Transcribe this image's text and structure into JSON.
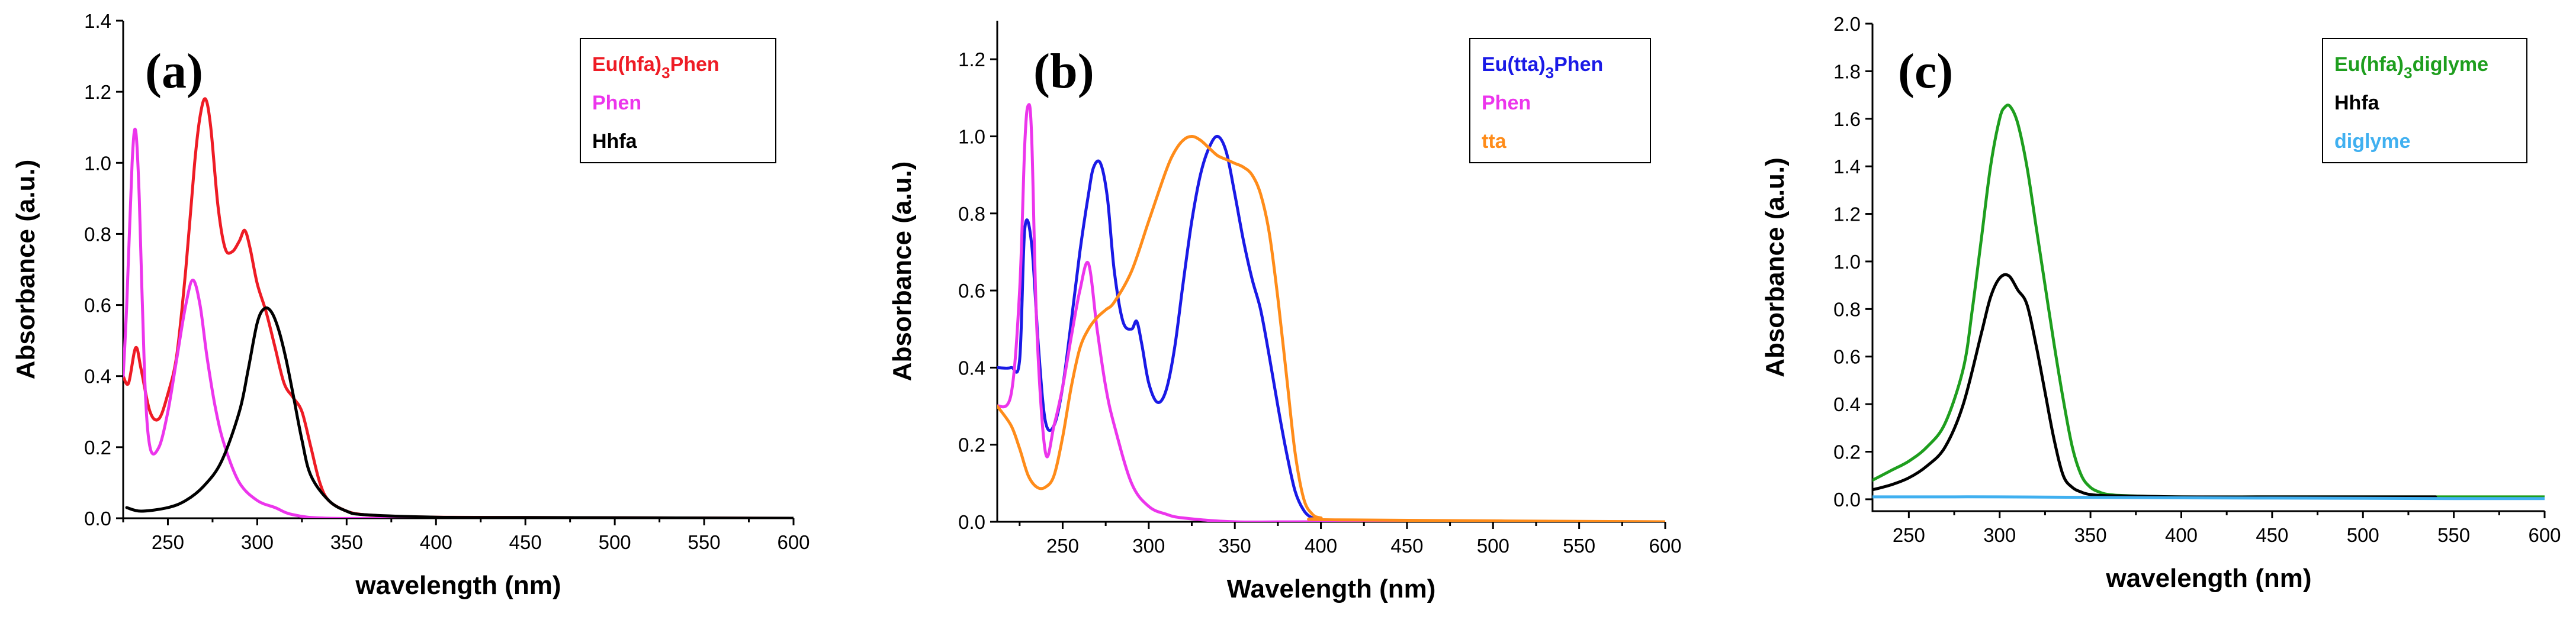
{
  "chart_data": [
    {
      "type": "line",
      "panel_label": "(a)",
      "xlabel": "wavelength (nm)",
      "ylabel": "Absorbance (a.u.)",
      "xlim": [
        225,
        600
      ],
      "ylim": [
        0,
        1.4
      ],
      "xticks": [
        250,
        300,
        350,
        400,
        450,
        500,
        550,
        600
      ],
      "yticks": [
        0.0,
        0.2,
        0.4,
        0.6,
        0.8,
        1.0,
        1.2,
        1.4
      ],
      "ytick_labels": [
        "0.0",
        "0.2",
        "0.4",
        "0.6",
        "0.8",
        "1.0",
        "1.2",
        "1.4"
      ],
      "legend_position": "top-right",
      "series": [
        {
          "name": "Eu(hfa)",
          "subscript": "3",
          "suffix": "Phen",
          "color": "#ee1c25",
          "x": [
            225,
            228,
            232,
            235,
            240,
            245,
            250,
            255,
            260,
            265,
            268,
            271,
            274,
            278,
            282,
            286,
            290,
            293,
            296,
            300,
            305,
            310,
            315,
            320,
            325,
            330,
            335,
            340,
            350,
            360,
            380,
            400,
            450,
            600
          ],
          "y": [
            0.4,
            0.38,
            0.48,
            0.42,
            0.3,
            0.28,
            0.35,
            0.46,
            0.7,
            1.0,
            1.13,
            1.18,
            1.1,
            0.88,
            0.76,
            0.75,
            0.78,
            0.81,
            0.76,
            0.66,
            0.58,
            0.48,
            0.38,
            0.34,
            0.3,
            0.2,
            0.1,
            0.05,
            0.02,
            0.01,
            0.005,
            0.003,
            0.002,
            0.0
          ]
        },
        {
          "name": "Phen",
          "subscript": "",
          "suffix": "",
          "color": "#ec35ec",
          "x": [
            225,
            227,
            230,
            232,
            234,
            237,
            240,
            245,
            250,
            255,
            260,
            264,
            268,
            272,
            277,
            282,
            290,
            300,
            310,
            320,
            340,
            400,
            600
          ],
          "y": [
            0.4,
            0.6,
            1.0,
            1.09,
            0.9,
            0.4,
            0.2,
            0.2,
            0.3,
            0.45,
            0.6,
            0.67,
            0.6,
            0.45,
            0.3,
            0.2,
            0.1,
            0.05,
            0.03,
            0.01,
            0.0,
            0.0,
            0.0
          ]
        },
        {
          "name": "Hhfa",
          "subscript": "",
          "suffix": "",
          "color": "#000000",
          "x": [
            227,
            235,
            250,
            260,
            270,
            280,
            290,
            295,
            300,
            304,
            308,
            312,
            316,
            320,
            325,
            330,
            340,
            350,
            360,
            400,
            450,
            600
          ],
          "y": [
            0.03,
            0.02,
            0.03,
            0.05,
            0.09,
            0.16,
            0.3,
            0.42,
            0.55,
            0.59,
            0.58,
            0.53,
            0.45,
            0.35,
            0.22,
            0.12,
            0.05,
            0.02,
            0.01,
            0.003,
            0.002,
            0.0
          ]
        }
      ]
    },
    {
      "type": "line",
      "panel_label": "(b)",
      "xlabel": "Wavelength (nm)",
      "ylabel": "Absorbance (a.u.)",
      "xlim": [
        212,
        600
      ],
      "ylim": [
        0,
        1.3
      ],
      "xticks": [
        250,
        300,
        350,
        400,
        450,
        500,
        550,
        600
      ],
      "yticks": [
        0.0,
        0.2,
        0.4,
        0.6,
        0.8,
        1.0,
        1.2
      ],
      "ytick_labels": [
        "0.0",
        "0.2",
        "0.4",
        "0.6",
        "0.8",
        "1.0",
        "1.2"
      ],
      "legend_position": "top-right",
      "series": [
        {
          "name": "Eu(tta)",
          "subscript": "3",
          "suffix": "Phen",
          "color": "#1a1ae6",
          "x": [
            212,
            220,
            225,
            228,
            232,
            236,
            240,
            245,
            250,
            255,
            260,
            265,
            268,
            272,
            276,
            280,
            285,
            290,
            293,
            296,
            300,
            305,
            310,
            315,
            320,
            325,
            330,
            335,
            340,
            345,
            350,
            355,
            360,
            365,
            370,
            375,
            380,
            385,
            390,
            395,
            400,
            420,
            600
          ],
          "y": [
            0.4,
            0.4,
            0.42,
            0.76,
            0.72,
            0.45,
            0.26,
            0.25,
            0.35,
            0.52,
            0.7,
            0.85,
            0.92,
            0.93,
            0.84,
            0.65,
            0.52,
            0.5,
            0.52,
            0.46,
            0.36,
            0.31,
            0.34,
            0.45,
            0.62,
            0.78,
            0.9,
            0.97,
            1.0,
            0.96,
            0.85,
            0.73,
            0.63,
            0.55,
            0.43,
            0.3,
            0.18,
            0.08,
            0.03,
            0.01,
            0.005,
            0.002,
            0.0
          ]
        },
        {
          "name": "Phen",
          "subscript": "",
          "suffix": "",
          "color": "#ec35ec",
          "x": [
            212,
            220,
            225,
            228,
            230,
            232,
            235,
            240,
            245,
            250,
            255,
            260,
            265,
            270,
            275,
            280,
            290,
            300,
            310,
            320,
            350,
            400,
            600
          ],
          "y": [
            0.3,
            0.33,
            0.6,
            0.98,
            1.08,
            1.0,
            0.5,
            0.18,
            0.25,
            0.35,
            0.48,
            0.6,
            0.67,
            0.5,
            0.35,
            0.25,
            0.1,
            0.04,
            0.02,
            0.01,
            0.0,
            0.0,
            0.0
          ]
        },
        {
          "name": "tta",
          "subscript": "",
          "suffix": "",
          "color": "#ff8c1a",
          "x": [
            212,
            220,
            225,
            230,
            235,
            240,
            245,
            250,
            255,
            260,
            265,
            270,
            275,
            280,
            290,
            300,
            310,
            315,
            320,
            325,
            330,
            335,
            340,
            345,
            350,
            355,
            360,
            365,
            370,
            375,
            380,
            385,
            390,
            395,
            400,
            410,
            600
          ],
          "y": [
            0.3,
            0.25,
            0.19,
            0.12,
            0.09,
            0.09,
            0.12,
            0.22,
            0.35,
            0.45,
            0.5,
            0.53,
            0.55,
            0.57,
            0.65,
            0.78,
            0.91,
            0.96,
            0.99,
            1.0,
            0.99,
            0.97,
            0.95,
            0.94,
            0.93,
            0.92,
            0.9,
            0.85,
            0.75,
            0.58,
            0.38,
            0.18,
            0.06,
            0.02,
            0.01,
            0.005,
            0.0
          ]
        }
      ]
    },
    {
      "type": "line",
      "panel_label": "(c)",
      "xlabel": "wavelength (nm)",
      "ylabel": "Absorbance (a.u.)",
      "xlim": [
        230,
        600
      ],
      "ylim": [
        -0.05,
        2.0
      ],
      "xticks": [
        250,
        300,
        350,
        400,
        450,
        500,
        550,
        600
      ],
      "yticks": [
        0.0,
        0.2,
        0.4,
        0.6,
        0.8,
        1.0,
        1.2,
        1.4,
        1.6,
        1.8,
        2.0
      ],
      "ytick_labels": [
        "0.0",
        "0.2",
        "0.4",
        "0.6",
        "0.8",
        "1.0",
        "1.2",
        "1.4",
        "1.6",
        "1.8",
        "2.0"
      ],
      "legend_position": "top-right",
      "series": [
        {
          "name": "Eu(hfa)",
          "subscript": "3",
          "suffix": "diglyme",
          "color": "#1e9e1e",
          "x": [
            230,
            240,
            250,
            260,
            270,
            280,
            285,
            290,
            295,
            300,
            303,
            306,
            310,
            315,
            320,
            325,
            330,
            335,
            340,
            345,
            350,
            355,
            360,
            370,
            400,
            450,
            600
          ],
          "y": [
            0.08,
            0.12,
            0.16,
            0.22,
            0.32,
            0.55,
            0.8,
            1.1,
            1.4,
            1.6,
            1.65,
            1.65,
            1.58,
            1.4,
            1.15,
            0.9,
            0.65,
            0.42,
            0.22,
            0.1,
            0.05,
            0.03,
            0.02,
            0.015,
            0.01,
            0.01,
            0.01
          ]
        },
        {
          "name": "Hhfa",
          "subscript": "",
          "suffix": "",
          "color": "#000000",
          "x": [
            230,
            240,
            250,
            260,
            270,
            280,
            290,
            295,
            300,
            305,
            310,
            315,
            320,
            325,
            330,
            335,
            340,
            345,
            350,
            360,
            400,
            450,
            500,
            540
          ],
          "y": [
            0.04,
            0.06,
            0.09,
            0.14,
            0.22,
            0.4,
            0.7,
            0.85,
            0.93,
            0.94,
            0.88,
            0.82,
            0.65,
            0.45,
            0.25,
            0.1,
            0.05,
            0.03,
            0.02,
            0.015,
            0.01,
            0.01,
            0.01,
            0.01
          ]
        },
        {
          "name": "diglyme",
          "subscript": "",
          "suffix": "",
          "color": "#40b0f0",
          "x": [
            230,
            250,
            300,
            350,
            400,
            450,
            500,
            550,
            600
          ],
          "y": [
            0.01,
            0.01,
            0.01,
            0.008,
            0.006,
            0.005,
            0.004,
            0.003,
            0.003
          ]
        }
      ]
    }
  ]
}
